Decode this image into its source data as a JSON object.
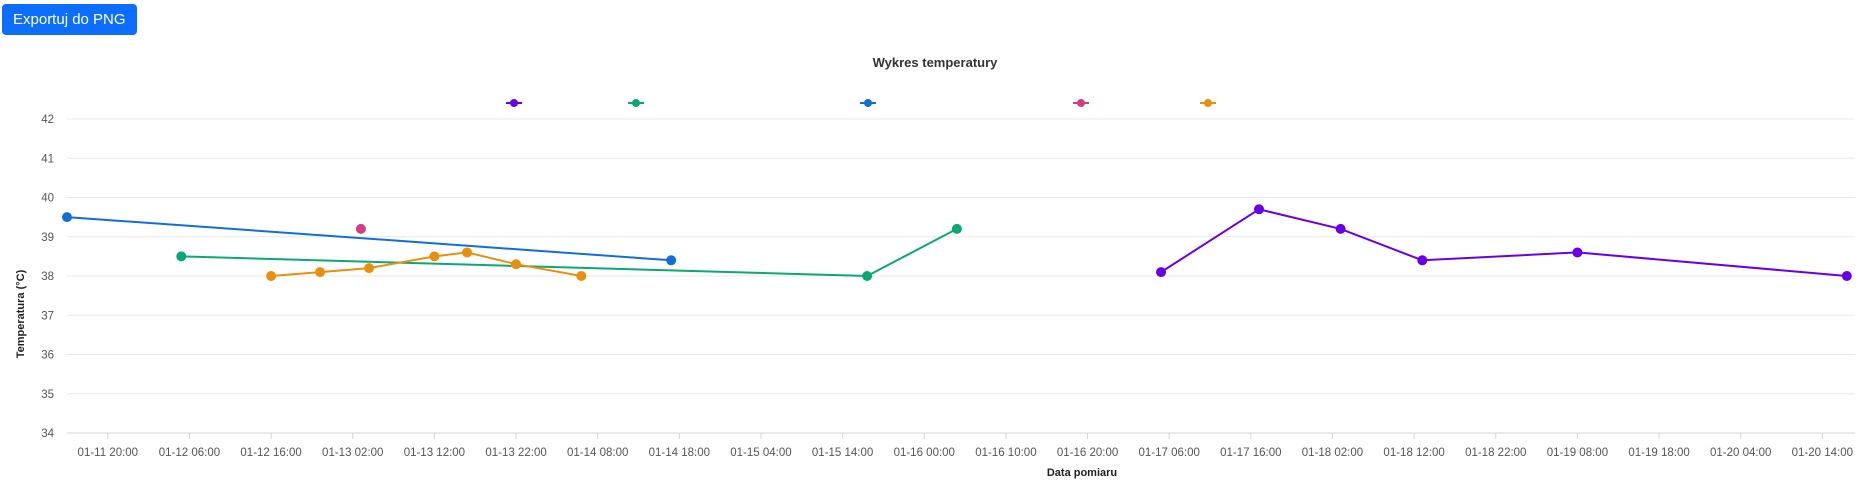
{
  "toolbar": {
    "export_label": "Exportuj do PNG"
  },
  "chart_data": {
    "type": "line",
    "title": "Wykres temperatury",
    "xlabel": "Data pomiaru",
    "ylabel": "Temperatura (°C)",
    "ylim": [
      34,
      42
    ],
    "yticks": [
      34,
      35,
      36,
      37,
      38,
      39,
      40,
      41,
      42
    ],
    "xlim": [
      "01-11 15:00",
      "01-20 18:00"
    ],
    "xticks": [
      "01-11 20:00",
      "01-12 06:00",
      "01-12 16:00",
      "01-13 02:00",
      "01-13 12:00",
      "01-13 22:00",
      "01-14 08:00",
      "01-14 18:00",
      "01-15 04:00",
      "01-15 14:00",
      "01-16 00:00",
      "01-16 10:00",
      "01-16 20:00",
      "01-17 06:00",
      "01-17 16:00",
      "01-18 02:00",
      "01-18 12:00",
      "01-18 22:00",
      "01-19 08:00",
      "01-19 18:00",
      "01-20 04:00",
      "01-20 14:00"
    ],
    "grid": true,
    "legend": "top",
    "series": [
      {
        "color": "#6a00e6",
        "points": [
          [
            "01-17 05:00",
            38.1
          ],
          [
            "01-17 17:00",
            39.7
          ],
          [
            "01-18 03:00",
            39.2
          ],
          [
            "01-18 13:00",
            38.4
          ],
          [
            "01-19 08:00",
            38.6
          ],
          [
            "01-20 17:00",
            38.0
          ]
        ]
      },
      {
        "color": "#0aa873",
        "points": [
          [
            "01-12 05:00",
            38.5
          ],
          [
            "01-15 17:00",
            38.0
          ],
          [
            "01-16 04:00",
            39.2
          ]
        ]
      },
      {
        "color": "#0f6fd8",
        "points": [
          [
            "01-11 15:00",
            39.5
          ],
          [
            "01-14 17:00",
            38.4
          ]
        ]
      },
      {
        "color": "#d43c84",
        "points": [
          [
            "01-13 03:00",
            39.2
          ]
        ]
      },
      {
        "color": "#e8900d",
        "points": [
          [
            "01-12 16:00",
            38.0
          ],
          [
            "01-12 22:00",
            38.1
          ],
          [
            "01-13 04:00",
            38.2
          ],
          [
            "01-13 12:00",
            38.5
          ],
          [
            "01-13 16:00",
            38.6
          ],
          [
            "01-13 22:00",
            38.3
          ],
          [
            "01-14 06:00",
            38.0
          ]
        ]
      }
    ]
  }
}
